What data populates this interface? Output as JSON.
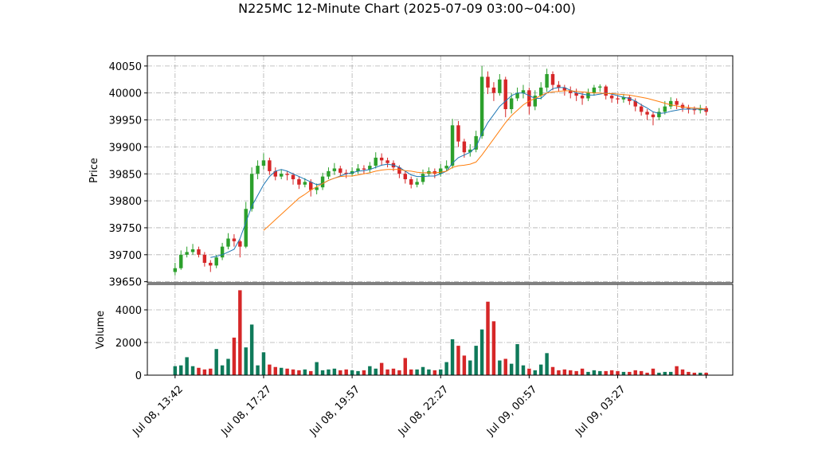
{
  "chart_data": {
    "type": "candlestick",
    "title": "N225MC 12-Minute Chart (2025-07-09 03:00~04:00)",
    "ylabel": "Price",
    "volume_ylabel": "Volume",
    "up_color": "#2ca02c",
    "down_color": "#d62728",
    "volume_color": "#0f7a5a",
    "grid": true,
    "xlim": [
      -4.7,
      94.5
    ],
    "xticks": [
      {
        "value": 0,
        "label": "Jul 08, 13:42"
      },
      {
        "value": 15,
        "label": "Jul 08, 17:27"
      },
      {
        "value": 30,
        "label": "Jul 08, 19:57"
      },
      {
        "value": 45,
        "label": "Jul 08, 22:27"
      },
      {
        "value": 60,
        "label": "Jul 09, 00:57"
      },
      {
        "value": 75,
        "label": "Jul 09, 03:27"
      },
      {
        "value": 90,
        "label": null
      }
    ],
    "ylim": [
      39648,
      40069
    ],
    "yticks": [
      39650,
      39700,
      39750,
      39800,
      39850,
      39900,
      39950,
      40000,
      40050
    ],
    "volume_ylim": [
      0,
      5561
    ],
    "volume_yticks": [
      0,
      2000,
      4000
    ],
    "open": [
      39668,
      39675,
      39700,
      39705,
      39710,
      39700,
      39685,
      39680,
      39695,
      39715,
      39730,
      39725,
      39715,
      39785,
      39850,
      39865,
      39875,
      39855,
      39845,
      39850,
      39848,
      39840,
      39830,
      39835,
      39820,
      39825,
      39845,
      39855,
      39860,
      39852,
      39850,
      39855,
      39860,
      39858,
      39865,
      39880,
      39875,
      39870,
      39862,
      39850,
      39840,
      39830,
      39835,
      39850,
      39855,
      39850,
      39860,
      39865,
      39940,
      39910,
      39890,
      39895,
      39920,
      40030,
      40010,
      40000,
      40025,
      39970,
      39990,
      40000,
      40005,
      39975,
      39995,
      40010,
      40035,
      40015,
      40010,
      40005,
      40000,
      39995,
      39990,
      40000,
      40010,
      40012,
      39995,
      39990,
      39988,
      39992,
      39985,
      39975,
      39965,
      39960,
      39955,
      39965,
      39975,
      39985,
      39978,
      39972,
      39970,
      39968,
      39972
    ],
    "high": [
      39685,
      39708,
      39715,
      39720,
      39715,
      39705,
      39690,
      39700,
      39722,
      39740,
      39738,
      39728,
      39798,
      39862,
      39875,
      39888,
      39880,
      39862,
      39858,
      39855,
      39852,
      39845,
      39842,
      39840,
      39832,
      39852,
      39862,
      39870,
      39865,
      39858,
      39862,
      39868,
      39866,
      39872,
      39890,
      39888,
      39880,
      39875,
      39866,
      39855,
      39845,
      39842,
      39858,
      39862,
      39860,
      39868,
      39875,
      39952,
      39948,
      39915,
      39905,
      39930,
      40050,
      40040,
      40020,
      40035,
      40030,
      40000,
      40010,
      40015,
      40010,
      40005,
      40020,
      40045,
      40040,
      40022,
      40015,
      40012,
      40008,
      40002,
      40008,
      40015,
      40016,
      40015,
      40000,
      39996,
      39998,
      39996,
      39990,
      39980,
      39970,
      39965,
      39972,
      39985,
      39992,
      39990,
      39982,
      39978,
      39975,
      39978,
      39976
    ],
    "low": [
      39662,
      39672,
      39695,
      39700,
      39695,
      39678,
      39668,
      39675,
      39690,
      39710,
      39715,
      39695,
      39712,
      39780,
      39840,
      39858,
      39848,
      39838,
      39840,
      39838,
      39830,
      39822,
      39825,
      39808,
      39812,
      39820,
      39840,
      39848,
      39845,
      39842,
      39845,
      39850,
      39850,
      39852,
      39860,
      39865,
      39862,
      39855,
      39842,
      39832,
      39823,
      39825,
      39830,
      39845,
      39842,
      39845,
      39855,
      39860,
      39900,
      39880,
      39882,
      39890,
      39915,
      39998,
      39985,
      39995,
      39955,
      39962,
      39985,
      39990,
      39960,
      39968,
      39988,
      40002,
      40005,
      40002,
      39995,
      39990,
      39985,
      39978,
      39985,
      39995,
      40002,
      39988,
      39982,
      39980,
      39982,
      39978,
      39966,
      39958,
      39950,
      39940,
      39950,
      39960,
      39970,
      39970,
      39965,
      39962,
      39960,
      39962,
      39958
    ],
    "close": [
      39675,
      39700,
      39705,
      39710,
      39700,
      39685,
      39680,
      39695,
      39715,
      39730,
      39725,
      39715,
      39785,
      39850,
      39865,
      39875,
      39855,
      39845,
      39850,
      39848,
      39840,
      39830,
      39835,
      39820,
      39825,
      39845,
      39855,
      39860,
      39852,
      39850,
      39855,
      39860,
      39858,
      39865,
      39880,
      39875,
      39870,
      39862,
      39850,
      39840,
      39830,
      39835,
      39850,
      39855,
      39850,
      39860,
      39865,
      39940,
      39910,
      39890,
      39895,
      39920,
      40030,
      40010,
      40000,
      40025,
      39970,
      39990,
      40000,
      40005,
      39975,
      39995,
      40010,
      40035,
      40015,
      40010,
      40005,
      40000,
      39995,
      39990,
      40000,
      40010,
      40012,
      39995,
      39990,
      39988,
      39992,
      39985,
      39975,
      39965,
      39960,
      39955,
      39965,
      39975,
      39985,
      39978,
      39972,
      39970,
      39968,
      39972,
      39965
    ],
    "volume": [
      550,
      600,
      1100,
      550,
      450,
      350,
      400,
      1600,
      600,
      1000,
      2300,
      5200,
      1700,
      3100,
      600,
      1400,
      650,
      500,
      450,
      400,
      350,
      300,
      350,
      250,
      800,
      300,
      350,
      400,
      300,
      350,
      300,
      250,
      300,
      550,
      400,
      750,
      350,
      400,
      300,
      1050,
      350,
      350,
      500,
      350,
      300,
      350,
      800,
      2200,
      1800,
      1200,
      900,
      1800,
      2800,
      4500,
      3300,
      900,
      1000,
      700,
      1900,
      600,
      400,
      300,
      650,
      1350,
      500,
      300,
      350,
      300,
      250,
      400,
      200,
      300,
      250,
      250,
      300,
      250,
      200,
      200,
      300,
      250,
      150,
      400,
      150,
      200,
      200,
      550,
      350,
      200,
      150,
      150,
      150
    ],
    "moving_averages": [
      {
        "color": "#1f77b4",
        "values": [
          null,
          null,
          null,
          null,
          null,
          null,
          39695,
          39697,
          39700,
          39705,
          39710,
          39730,
          39760,
          39790,
          39810,
          39830,
          39845,
          39855,
          39858,
          39855,
          39850,
          39845,
          39840,
          39835,
          39830,
          39832,
          39838,
          39842,
          39846,
          39850,
          39852,
          39855,
          39856,
          39858,
          39862,
          39866,
          39868,
          39866,
          39862,
          39855,
          39848,
          39845,
          39845,
          39846,
          39846,
          39850,
          39855,
          39870,
          39880,
          39885,
          39890,
          39900,
          39925,
          39945,
          39960,
          39975,
          39985,
          39995,
          40000,
          40000,
          39995,
          39990,
          39990,
          40000,
          40008,
          40010,
          40010,
          40005,
          40000,
          39998,
          39996,
          39996,
          39998,
          40000,
          39998,
          39995,
          39992,
          39990,
          39985,
          39978,
          39972,
          39965,
          39962,
          39963,
          39966,
          39968,
          39970,
          39970,
          39970,
          39970,
          39968
        ]
      },
      {
        "color": "#ff7f0e",
        "values": [
          null,
          null,
          null,
          null,
          null,
          null,
          null,
          null,
          null,
          null,
          null,
          null,
          null,
          null,
          null,
          39745,
          39755,
          39765,
          39775,
          39785,
          39795,
          39805,
          39812,
          39820,
          39826,
          39832,
          39838,
          39842,
          39845,
          39846,
          39846,
          39848,
          39850,
          39852,
          39855,
          39857,
          39858,
          39858,
          39858,
          39856,
          39855,
          39853,
          39852,
          39852,
          39852,
          39853,
          39855,
          39862,
          39865,
          39866,
          39868,
          39872,
          39885,
          39900,
          39915,
          39930,
          39945,
          39958,
          39968,
          39978,
          39985,
          39990,
          39995,
          40000,
          40002,
          40003,
          40004,
          40004,
          40003,
          40002,
          40001,
          40000,
          40000,
          39999,
          39999,
          39998,
          39997,
          39996,
          39994,
          39992,
          39990,
          39987,
          39984,
          39981,
          39978,
          39976,
          39974,
          39973,
          39972,
          39971,
          39970
        ]
      }
    ]
  }
}
